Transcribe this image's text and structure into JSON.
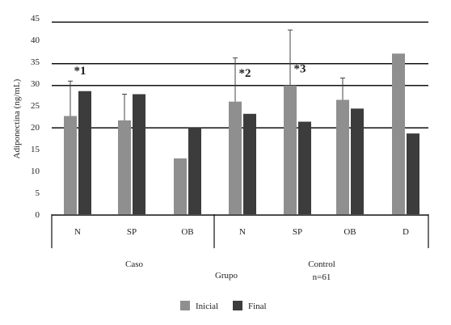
{
  "chart_data": {
    "type": "bar",
    "title": "",
    "xlabel": "Grupo",
    "ylabel": "Adiponectina (ng/mL)",
    "ylim": [
      0,
      45
    ],
    "yticks": [
      0,
      5,
      10,
      15,
      20,
      25,
      30,
      35,
      40,
      45
    ],
    "categories": [
      "N",
      "SP",
      "OB",
      "N",
      "SP",
      "OB",
      "D"
    ],
    "groups": [
      {
        "label": "Caso",
        "categories": [
          "N",
          "SP",
          "OB"
        ]
      },
      {
        "label": "Control",
        "sublabel": "n=61",
        "categories": [
          "N",
          "SP",
          "OB",
          "D"
        ]
      }
    ],
    "series": [
      {
        "name": "Inicial",
        "color": "#8f8f8f",
        "values": [
          22.5,
          21.5,
          12.8,
          25.8,
          29.5,
          26.2,
          36.8
        ],
        "error_upper": [
          30.5,
          27.5,
          null,
          35.8,
          42.2,
          31.2,
          null
        ]
      },
      {
        "name": "Final",
        "color": "#3c3c3c",
        "values": [
          28.2,
          27.5,
          19.8,
          23.0,
          21.2,
          24.2,
          18.5
        ],
        "error_upper": [
          null,
          null,
          null,
          null,
          null,
          null,
          null
        ]
      }
    ],
    "reference_lines": [
      19.8,
      29.5,
      34.5,
      44.0
    ],
    "annotations": [
      {
        "text": "*1",
        "category_index": 0,
        "y": 32
      },
      {
        "text": "*2",
        "category_index": 3,
        "y": 31.5
      },
      {
        "text": "*3",
        "category_index": 4,
        "y": 32.5
      }
    ],
    "legend_position": "bottom-center"
  }
}
